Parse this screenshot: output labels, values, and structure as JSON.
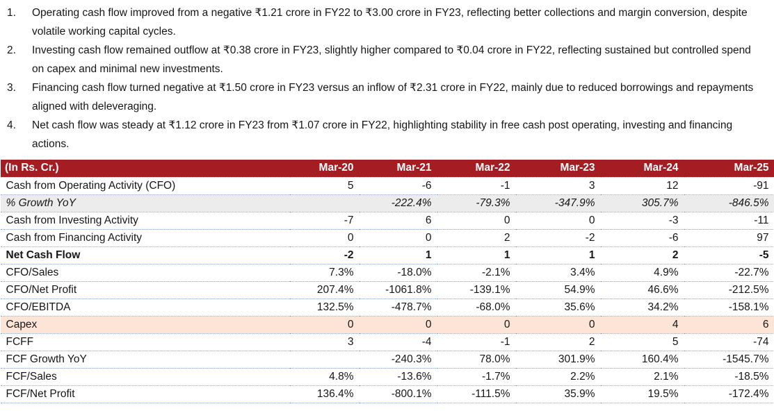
{
  "colors": {
    "header_bg": "#A31D23",
    "growth_row_bg": "#ECECEC",
    "capex_row_bg": "#FCE4D6",
    "row_border": "#8FA0C8",
    "header_text": "#FFFFFF"
  },
  "notes": [
    {
      "number": "1.",
      "text": "Operating cash flow improved from a negative ₹1.21 crore in FY22 to ₹3.00 crore in FY23, reflecting better collections and margin conversion, despite volatile working capital cycles."
    },
    {
      "number": "2.",
      "text": "Investing cash flow remained outflow at ₹0.38 crore in FY23, slightly higher compared to ₹0.04 crore in FY22, reflecting sustained but controlled spend on capex and minimal new investments."
    },
    {
      "number": "3.",
      "text": "Financing cash flow turned negative at ₹1.50 crore in FY23 versus an inflow of ₹2.31 crore in FY22, mainly due to reduced borrowings and repayments aligned with deleveraging."
    },
    {
      "number": "4.",
      "text": "Net cash flow was steady at ₹1.12 crore in FY23 from ₹1.07 crore in FY22, highlighting stability in free cash post operating, investing and financing actions."
    }
  ],
  "table": {
    "unit_label": "(In Rs. Cr.)",
    "columns": [
      "Mar-20",
      "Mar-21",
      "Mar-22",
      "Mar-23",
      "Mar-24",
      "Mar-25"
    ],
    "rows": [
      {
        "label": "Cash from Operating Activity (CFO)",
        "style": "normal",
        "values": [
          "5",
          "-6",
          "-1",
          "3",
          "12",
          "-91"
        ]
      },
      {
        "label": "% Growth YoY",
        "style": "growth",
        "values": [
          "",
          "-222.4%",
          "-79.3%",
          "-347.9%",
          "305.7%",
          "-846.5%"
        ]
      },
      {
        "label": "Cash from Investing Activity",
        "style": "normal",
        "values": [
          "-7",
          "6",
          "0",
          "0",
          "-3",
          "-11"
        ]
      },
      {
        "label": "Cash from Financing Activity",
        "style": "normal",
        "values": [
          "0",
          "0",
          "2",
          "-2",
          "-6",
          "97"
        ]
      },
      {
        "label": "Net Cash Flow",
        "style": "bold",
        "values": [
          "-2",
          "1",
          "1",
          "1",
          "2",
          "-5"
        ]
      },
      {
        "label": "CFO/Sales",
        "style": "normal",
        "values": [
          "7.3%",
          "-18.0%",
          "-2.1%",
          "3.4%",
          "4.9%",
          "-22.7%"
        ]
      },
      {
        "label": "CFO/Net Profit",
        "style": "normal",
        "values": [
          "207.4%",
          "-1061.8%",
          "-139.1%",
          "54.9%",
          "46.6%",
          "-212.5%"
        ]
      },
      {
        "label": "CFO/EBITDA",
        "style": "normal",
        "values": [
          "132.5%",
          "-478.7%",
          "-68.0%",
          "35.6%",
          "34.2%",
          "-158.1%"
        ]
      },
      {
        "label": "Capex",
        "style": "capex",
        "values": [
          "0",
          "0",
          "0",
          "0",
          "4",
          "6"
        ]
      },
      {
        "label": "FCFF",
        "style": "normal",
        "values": [
          "3",
          "-4",
          "-1",
          "2",
          "5",
          "-74"
        ]
      },
      {
        "label": "FCF Growth YoY",
        "style": "normal",
        "values": [
          "",
          "-240.3%",
          "78.0%",
          "301.9%",
          "160.4%",
          "-1545.7%"
        ]
      },
      {
        "label": "FCF/Sales",
        "style": "normal",
        "values": [
          "4.8%",
          "-13.6%",
          "-1.7%",
          "2.2%",
          "2.1%",
          "-18.5%"
        ]
      },
      {
        "label": "FCF/Net Profit",
        "style": "normal",
        "values": [
          "136.4%",
          "-800.1%",
          "-111.5%",
          "35.9%",
          "19.5%",
          "-172.4%"
        ]
      }
    ]
  }
}
